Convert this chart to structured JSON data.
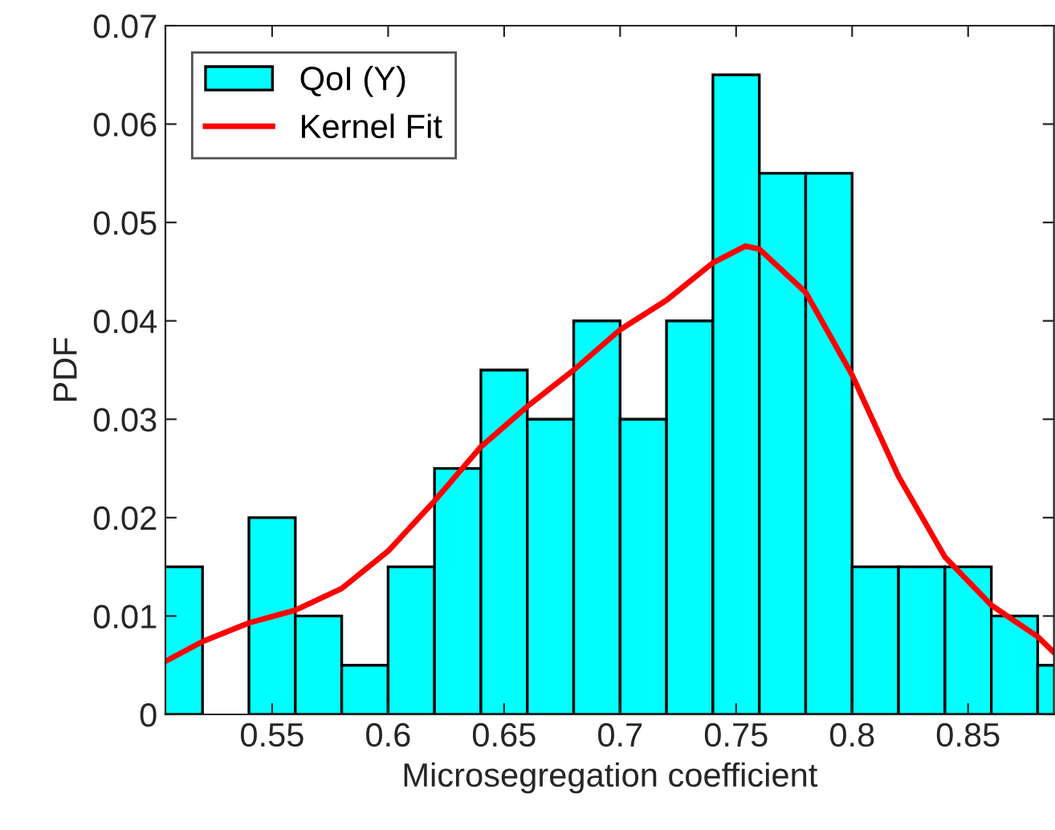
{
  "chart_data": {
    "type": "histogram",
    "xlabel": "Microsegregation coefficient",
    "ylabel": "PDF",
    "bins": [
      0.5,
      0.52,
      0.54,
      0.56,
      0.58,
      0.6,
      0.62,
      0.64,
      0.66,
      0.68,
      0.7,
      0.72,
      0.74,
      0.76,
      0.78,
      0.8,
      0.82,
      0.84,
      0.86,
      0.88,
      0.9
    ],
    "series": [
      {
        "name": "QoI (Y)",
        "color": "#00ffff",
        "values": [
          0.015,
          0,
          0.02,
          0.01,
          0.005,
          0.015,
          0.025,
          0.035,
          0.03,
          0.04,
          0.03,
          0.04,
          0.065,
          0.055,
          0.055,
          0.015,
          0.015,
          0.015,
          0.01,
          0.005
        ]
      },
      {
        "name": "Kernel Fit",
        "type": "line",
        "color": "#ff0000",
        "x": [
          0.504,
          0.52,
          0.54,
          0.56,
          0.58,
          0.6,
          0.62,
          0.64,
          0.66,
          0.68,
          0.7,
          0.72,
          0.74,
          0.754,
          0.76,
          0.78,
          0.8,
          0.82,
          0.84,
          0.86,
          0.88,
          0.887
        ],
        "values": [
          0.0054,
          0.0074,
          0.0093,
          0.0106,
          0.0128,
          0.0166,
          0.0217,
          0.0272,
          0.0313,
          0.035,
          0.0391,
          0.0421,
          0.0459,
          0.0476,
          0.0473,
          0.0429,
          0.0345,
          0.0242,
          0.016,
          0.0111,
          0.0079,
          0.0063
        ]
      }
    ],
    "xlim": [
      0.504,
      0.887
    ],
    "xticks": [
      0.55,
      0.6,
      0.65,
      0.7,
      0.75,
      0.8,
      0.85
    ],
    "ylim": [
      0,
      0.07
    ],
    "yticks": [
      0,
      0.01,
      0.02,
      0.03,
      0.04,
      0.05,
      0.06,
      0.07
    ],
    "legend": "top left",
    "grid": false,
    "line_style": "solid",
    "marker": "none"
  }
}
